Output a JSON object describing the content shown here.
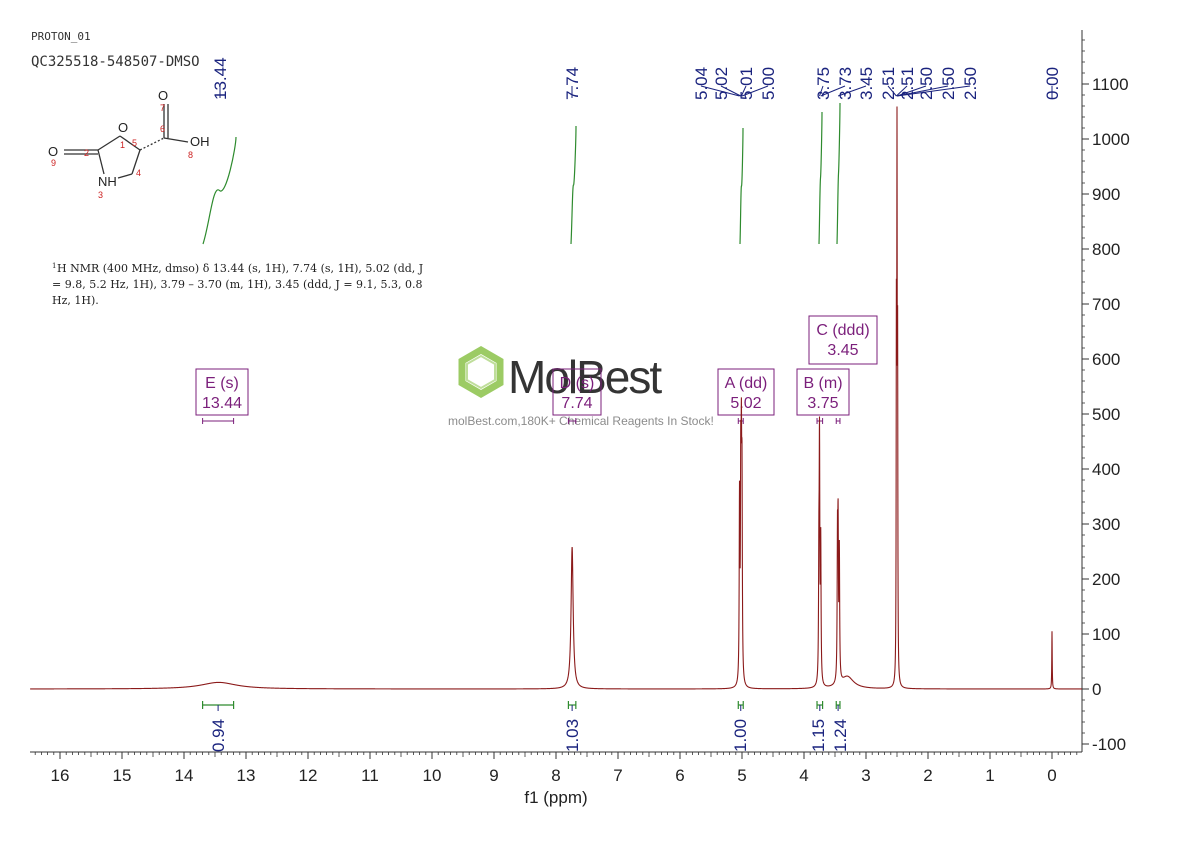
{
  "header": {
    "experiment": "PROTON_01",
    "sample": "QC325518-548507-DMSO"
  },
  "structure": {
    "atoms": [
      "O",
      "O",
      "OH",
      "O",
      "NH",
      "1",
      "2",
      "3",
      "4",
      "5",
      "6",
      "7",
      "8",
      "9"
    ]
  },
  "nmr_text": {
    "line1": "H NMR (400 MHz, dmso) δ 13.44 (s, 1H), 7.74 (s, 1H), 5.02 (dd, J",
    "line1_sup": "1",
    "line2": "= 9.8, 5.2 Hz, 1H), 3.79 – 3.70 (m, 1H), 3.45 (ddd, J = 9.1, 5.3, 0.8",
    "line3": "Hz, 1H)."
  },
  "watermark": {
    "brand": "MolBest",
    "tagline": "molBest.com,180K+ Chemical Reagents In Stock!"
  },
  "colors": {
    "spectrum": "#8b1a1a",
    "peak_label": "#1a237e",
    "integral": "#2e8b2e",
    "multiplet": "#7b1f7b",
    "axis": "#333333",
    "atom_number": "#cc2222"
  },
  "chart_data": {
    "type": "line",
    "xlabel": "f1 (ppm)",
    "ylabel": "",
    "xlim": [
      16.5,
      -0.5
    ],
    "ylim": [
      -110,
      1200
    ],
    "x_reversed": true,
    "x_ticks": [
      "16",
      "15",
      "14",
      "13",
      "12",
      "11",
      "10",
      "9",
      "8",
      "7",
      "6",
      "5",
      "4",
      "3",
      "2",
      "1",
      "0"
    ],
    "y_ticks": [
      "1100",
      "1000",
      "900",
      "800",
      "700",
      "600",
      "500",
      "400",
      "300",
      "200",
      "100",
      "0",
      "-100"
    ],
    "peaks": [
      {
        "ppm": 13.44,
        "height": 12,
        "width": 0.35
      },
      {
        "ppm": 7.74,
        "height": 258,
        "width": 0.02
      },
      {
        "ppm": 5.04,
        "height": 330,
        "width": 0.006
      },
      {
        "ppm": 5.02,
        "height": 345,
        "width": 0.006
      },
      {
        "ppm": 5.01,
        "height": 340,
        "width": 0.006
      },
      {
        "ppm": 5.0,
        "height": 325,
        "width": 0.006
      },
      {
        "ppm": 3.76,
        "height": 200,
        "width": 0.006
      },
      {
        "ppm": 3.75,
        "height": 420,
        "width": 0.006
      },
      {
        "ppm": 3.73,
        "height": 250,
        "width": 0.006
      },
      {
        "ppm": 3.46,
        "height": 240,
        "width": 0.006
      },
      {
        "ppm": 3.45,
        "height": 255,
        "width": 0.006
      },
      {
        "ppm": 3.43,
        "height": 230,
        "width": 0.006
      },
      {
        "ppm": 3.3,
        "height": 22,
        "width": 0.12
      },
      {
        "ppm": 2.51,
        "height": 600,
        "width": 0.004
      },
      {
        "ppm": 2.5,
        "height": 900,
        "width": 0.004
      },
      {
        "ppm": 2.49,
        "height": 550,
        "width": 0.004
      },
      {
        "ppm": 0.0,
        "height": 105,
        "width": 0.004
      }
    ],
    "peak_labels": [
      {
        "text": "13.44",
        "ppm": 13.44,
        "group": 0
      },
      {
        "text": "7.74",
        "ppm": 7.74,
        "group": 1
      },
      {
        "text": "5.04",
        "ppm": 5.04,
        "group": 2
      },
      {
        "text": "5.02",
        "ppm": 5.02,
        "group": 2
      },
      {
        "text": "5.01",
        "ppm": 5.01,
        "group": 2
      },
      {
        "text": "5.00",
        "ppm": 5.0,
        "group": 2
      },
      {
        "text": "3.75",
        "ppm": 3.75,
        "group": 3
      },
      {
        "text": "3.73",
        "ppm": 3.73,
        "group": 3
      },
      {
        "text": "3.45",
        "ppm": 3.45,
        "group": 3
      },
      {
        "text": "2.51",
        "ppm": 2.51,
        "group": 4
      },
      {
        "text": "2.51",
        "ppm": 2.51,
        "group": 4
      },
      {
        "text": "2.50",
        "ppm": 2.5,
        "group": 4
      },
      {
        "text": "2.50",
        "ppm": 2.5,
        "group": 4
      },
      {
        "text": "2.50",
        "ppm": 2.5,
        "group": 4
      },
      {
        "text": "0.00",
        "ppm": 0.0,
        "group": 5
      }
    ],
    "integrals": [
      {
        "from": 13.7,
        "to": 13.2,
        "value": "0.94"
      },
      {
        "from": 7.8,
        "to": 7.68,
        "value": "1.03"
      },
      {
        "from": 5.06,
        "to": 4.98,
        "value": "1.00"
      },
      {
        "from": 3.79,
        "to": 3.7,
        "value": "1.15"
      },
      {
        "from": 3.48,
        "to": 3.42,
        "value": "1.24"
      }
    ],
    "multiplets": [
      {
        "label": "E (s)",
        "shift": "13.44",
        "ppm": 13.44,
        "from": 13.7,
        "to": 13.2
      },
      {
        "label": "D (s)",
        "shift": "7.74",
        "ppm": 7.74,
        "from": 7.8,
        "to": 7.68
      },
      {
        "label": "A (dd)",
        "shift": "5.02",
        "ppm": 5.02,
        "from": 5.06,
        "to": 4.98
      },
      {
        "label": "B (m)",
        "shift": "3.75",
        "ppm": 3.75,
        "from": 3.79,
        "to": 3.7
      },
      {
        "label": "C (ddd)",
        "shift": "3.45",
        "ppm": 3.45,
        "from": 3.48,
        "to": 3.42
      }
    ]
  }
}
